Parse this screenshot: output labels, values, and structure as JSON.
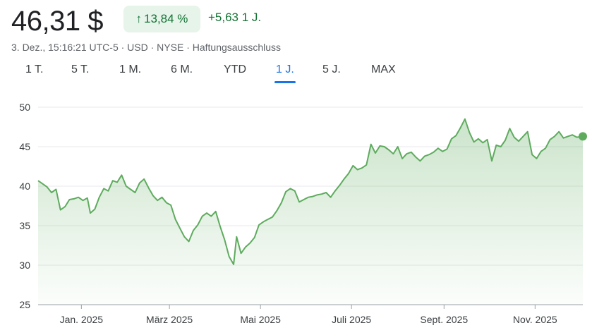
{
  "header": {
    "price": "46,31 $",
    "change_pct": "13,84 %",
    "change_arrow": "↑",
    "change_abs": "+5,63 1 J.",
    "meta": "3. Dez., 15:16:21 UTC-5 · USD · NYSE · Haftungsausschluss"
  },
  "ranges": [
    "1 T.",
    "5 T.",
    "1 M.",
    "6 M.",
    "YTD",
    "1 J.",
    "5 J.",
    "MAX"
  ],
  "active_range": "1 J.",
  "colors": {
    "up": "#137333",
    "line": "#5eab5e",
    "accent": "#1a73e8"
  },
  "chart_data": {
    "type": "area",
    "ylim": [
      25,
      50
    ],
    "yticks": [
      "50",
      "45",
      "40",
      "35",
      "30",
      "25"
    ],
    "x_tick_labels": [
      "Jan. 2025",
      "März 2025",
      "Mai 2025",
      "Juli 2025",
      "Sept. 2025",
      "Nov. 2025"
    ],
    "x_range": [
      "2024-12-03",
      "2025-12-03"
    ],
    "x_tick_dates": [
      "2025-01-01",
      "2025-03-01",
      "2025-05-01",
      "2025-07-01",
      "2025-09-01",
      "2025-11-01"
    ],
    "series": [
      {
        "points": [
          [
            "2024-12-03",
            40.7
          ],
          [
            "2024-12-06",
            40.3
          ],
          [
            "2024-12-09",
            39.9
          ],
          [
            "2024-12-12",
            39.2
          ],
          [
            "2024-12-15",
            39.6
          ],
          [
            "2024-12-18",
            37.0
          ],
          [
            "2024-12-21",
            37.4
          ],
          [
            "2024-12-24",
            38.3
          ],
          [
            "2024-12-27",
            38.4
          ],
          [
            "2024-12-30",
            38.6
          ],
          [
            "2025-01-02",
            38.2
          ],
          [
            "2025-01-05",
            38.5
          ],
          [
            "2025-01-07",
            36.6
          ],
          [
            "2025-01-10",
            37.1
          ],
          [
            "2025-01-13",
            38.6
          ],
          [
            "2025-01-16",
            39.7
          ],
          [
            "2025-01-19",
            39.4
          ],
          [
            "2025-01-22",
            40.7
          ],
          [
            "2025-01-25",
            40.5
          ],
          [
            "2025-01-28",
            41.4
          ],
          [
            "2025-01-31",
            40.0
          ],
          [
            "2025-02-03",
            39.6
          ],
          [
            "2025-02-06",
            39.2
          ],
          [
            "2025-02-09",
            40.4
          ],
          [
            "2025-02-12",
            40.9
          ],
          [
            "2025-02-15",
            39.8
          ],
          [
            "2025-02-18",
            38.8
          ],
          [
            "2025-02-21",
            38.2
          ],
          [
            "2025-02-24",
            38.6
          ],
          [
            "2025-02-27",
            37.9
          ],
          [
            "2025-03-02",
            37.6
          ],
          [
            "2025-03-05",
            35.8
          ],
          [
            "2025-03-08",
            34.7
          ],
          [
            "2025-03-11",
            33.6
          ],
          [
            "2025-03-14",
            33.0
          ],
          [
            "2025-03-17",
            34.4
          ],
          [
            "2025-03-20",
            35.1
          ],
          [
            "2025-03-23",
            36.2
          ],
          [
            "2025-03-26",
            36.6
          ],
          [
            "2025-03-29",
            36.2
          ],
          [
            "2025-04-01",
            36.8
          ],
          [
            "2025-04-04",
            34.9
          ],
          [
            "2025-04-07",
            33.2
          ],
          [
            "2025-04-10",
            31.1
          ],
          [
            "2025-04-13",
            30.1
          ],
          [
            "2025-04-15",
            33.6
          ],
          [
            "2025-04-18",
            31.5
          ],
          [
            "2025-04-21",
            32.3
          ],
          [
            "2025-04-24",
            32.8
          ],
          [
            "2025-04-27",
            33.5
          ],
          [
            "2025-04-30",
            35.1
          ],
          [
            "2025-05-03",
            35.5
          ],
          [
            "2025-05-06",
            35.8
          ],
          [
            "2025-05-09",
            36.1
          ],
          [
            "2025-05-12",
            36.9
          ],
          [
            "2025-05-15",
            37.9
          ],
          [
            "2025-05-18",
            39.3
          ],
          [
            "2025-05-21",
            39.7
          ],
          [
            "2025-05-24",
            39.4
          ],
          [
            "2025-05-27",
            38.0
          ],
          [
            "2025-05-30",
            38.3
          ],
          [
            "2025-06-02",
            38.6
          ],
          [
            "2025-06-05",
            38.7
          ],
          [
            "2025-06-08",
            38.9
          ],
          [
            "2025-06-11",
            39.0
          ],
          [
            "2025-06-14",
            39.2
          ],
          [
            "2025-06-17",
            38.6
          ],
          [
            "2025-06-20",
            39.4
          ],
          [
            "2025-06-23",
            40.1
          ],
          [
            "2025-06-26",
            40.9
          ],
          [
            "2025-06-29",
            41.6
          ],
          [
            "2025-07-02",
            42.6
          ],
          [
            "2025-07-05",
            42.1
          ],
          [
            "2025-07-08",
            42.3
          ],
          [
            "2025-07-11",
            42.7
          ],
          [
            "2025-07-14",
            45.3
          ],
          [
            "2025-07-17",
            44.2
          ],
          [
            "2025-07-20",
            45.1
          ],
          [
            "2025-07-23",
            45.0
          ],
          [
            "2025-07-26",
            44.6
          ],
          [
            "2025-07-29",
            44.1
          ],
          [
            "2025-08-01",
            45.0
          ],
          [
            "2025-08-04",
            43.5
          ],
          [
            "2025-08-07",
            44.1
          ],
          [
            "2025-08-10",
            44.3
          ],
          [
            "2025-08-13",
            43.7
          ],
          [
            "2025-08-16",
            43.2
          ],
          [
            "2025-08-19",
            43.8
          ],
          [
            "2025-08-22",
            44.0
          ],
          [
            "2025-08-25",
            44.3
          ],
          [
            "2025-08-28",
            44.8
          ],
          [
            "2025-08-31",
            44.4
          ],
          [
            "2025-09-03",
            44.7
          ],
          [
            "2025-09-06",
            46.0
          ],
          [
            "2025-09-09",
            46.4
          ],
          [
            "2025-09-12",
            47.4
          ],
          [
            "2025-09-15",
            48.5
          ],
          [
            "2025-09-18",
            46.8
          ],
          [
            "2025-09-21",
            45.6
          ],
          [
            "2025-09-24",
            46.0
          ],
          [
            "2025-09-27",
            45.5
          ],
          [
            "2025-09-30",
            45.9
          ],
          [
            "2025-10-03",
            43.2
          ],
          [
            "2025-10-06",
            45.2
          ],
          [
            "2025-10-09",
            45.0
          ],
          [
            "2025-10-12",
            45.8
          ],
          [
            "2025-10-15",
            47.3
          ],
          [
            "2025-10-18",
            46.2
          ],
          [
            "2025-10-21",
            45.7
          ],
          [
            "2025-10-24",
            46.3
          ],
          [
            "2025-10-27",
            46.9
          ],
          [
            "2025-10-30",
            44.0
          ],
          [
            "2025-11-02",
            43.5
          ],
          [
            "2025-11-05",
            44.4
          ],
          [
            "2025-11-08",
            44.8
          ],
          [
            "2025-11-11",
            45.9
          ],
          [
            "2025-11-14",
            46.3
          ],
          [
            "2025-11-17",
            46.9
          ],
          [
            "2025-11-20",
            46.1
          ],
          [
            "2025-11-23",
            46.3
          ],
          [
            "2025-11-26",
            46.5
          ],
          [
            "2025-11-29",
            46.2
          ],
          [
            "2025-12-03",
            46.31
          ]
        ]
      }
    ]
  }
}
